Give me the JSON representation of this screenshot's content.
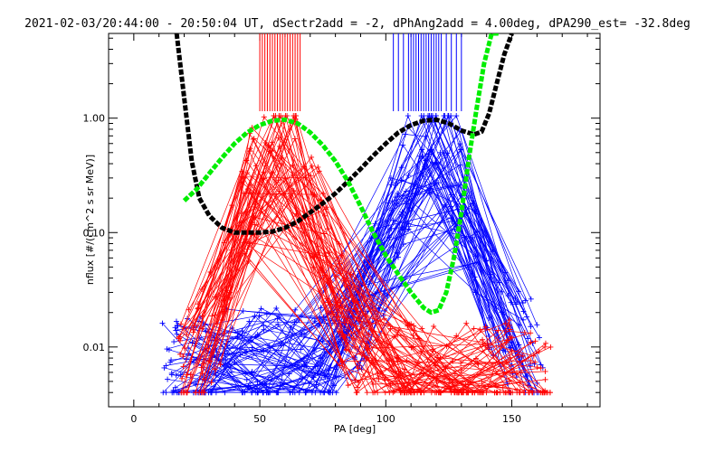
{
  "chart_data": {
    "type": "line",
    "title": "2021-02-03/20:44:00 - 20:50:04 UT, dSectr2add = -2, dPhAng2add = 4.00deg, dPA290_est= -32.8deg",
    "xlabel": "PA [deg]",
    "ylabel": "nflux [#/(cm^2 s sr MeV)]",
    "xlim": [
      -10,
      185
    ],
    "ylim": [
      0.003,
      5.5
    ],
    "yscale": "log",
    "x_ticks": [
      0,
      50,
      100,
      150
    ],
    "y_ticks": [
      0.01,
      0.1,
      1.0
    ],
    "y_tick_labels": [
      "0.01",
      "0.10",
      "1.00"
    ],
    "grid": false,
    "legend": "none",
    "colors": {
      "red": "#ff0000",
      "blue": "#0000ff",
      "green": "#00ee00",
      "black": "#000000"
    },
    "series": [
      {
        "name": "",
        "color": "#000000",
        "style": "dashed-thick",
        "x": [
          17,
          20,
          23,
          26,
          30,
          35,
          40,
          45,
          50,
          55,
          60,
          65,
          70,
          75,
          80,
          85,
          90,
          95,
          100,
          105,
          110,
          115,
          120,
          125,
          130,
          135,
          138,
          141,
          144,
          147,
          150
        ],
        "y": [
          5.5,
          1.5,
          0.42,
          0.2,
          0.14,
          0.11,
          0.1,
          0.1,
          0.1,
          0.102,
          0.11,
          0.125,
          0.15,
          0.18,
          0.22,
          0.28,
          0.36,
          0.47,
          0.6,
          0.75,
          0.87,
          0.95,
          0.97,
          0.9,
          0.78,
          0.72,
          0.76,
          1.1,
          2.0,
          3.6,
          5.5
        ]
      },
      {
        "name": "",
        "color": "#00ee00",
        "style": "dashed-thick",
        "x": [
          20,
          25,
          30,
          35,
          40,
          45,
          50,
          55,
          60,
          65,
          70,
          75,
          80,
          85,
          90,
          95,
          100,
          105,
          110,
          115,
          118,
          121,
          124,
          127,
          130,
          133,
          136,
          139,
          142,
          145
        ],
        "y": [
          0.19,
          0.24,
          0.33,
          0.45,
          0.6,
          0.75,
          0.87,
          0.95,
          0.97,
          0.9,
          0.75,
          0.58,
          0.42,
          0.28,
          0.17,
          0.1,
          0.063,
          0.043,
          0.03,
          0.022,
          0.02,
          0.021,
          0.03,
          0.06,
          0.15,
          0.45,
          1.2,
          3.0,
          5.5,
          5.5
        ]
      }
    ],
    "pa_markers": {
      "red_x": [
        50,
        51,
        52,
        53,
        54,
        55,
        56,
        57,
        58,
        59,
        60,
        61,
        62,
        63,
        64,
        65,
        66
      ],
      "blue_x": [
        103,
        105,
        107,
        109,
        110,
        111,
        112,
        113,
        114,
        115,
        116,
        117,
        118,
        119,
        120,
        121,
        122,
        124,
        126,
        128,
        130
      ],
      "y_range": [
        1.15,
        5.5
      ]
    }
  }
}
